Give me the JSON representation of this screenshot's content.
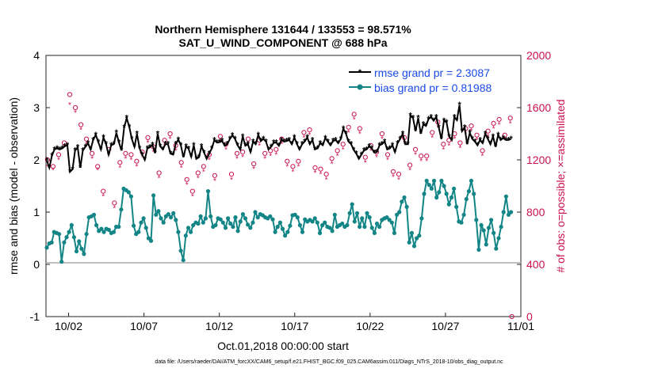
{
  "chart_data": {
    "type": "line",
    "title": "Northern Hemisphere 131644 / 133553 = 98.571%",
    "subtitle": "SAT_U_WIND_COMPONENT @ 688 hPa",
    "xlabel": "Oct.01,2018 00:00:00 start",
    "ylabel": "rmse and bias (model - observation)",
    "y2label": "# of obs: o=possible; ×=assimilated",
    "ylim": [
      -1,
      4
    ],
    "y2lim": [
      0,
      2000
    ],
    "xlim": [
      0.5,
      31.4
    ],
    "yticks": [
      "-1",
      "0",
      "1",
      "2",
      "3",
      "4"
    ],
    "y2ticks": [
      "0",
      "400",
      "800",
      "1200",
      "1600",
      "2000"
    ],
    "xtick_labels": [
      "10/02",
      "10/07",
      "10/12",
      "10/17",
      "10/22",
      "10/27",
      "11/01"
    ],
    "xtick_positions": [
      2,
      7,
      12,
      17,
      22,
      27,
      32
    ],
    "legend": [
      "rmse grand pr = 2.3087",
      "bias grand pr = 0.81988"
    ],
    "footnote": "data file: /Users/raeder/DAI/ATM_forcXX/CAM6_setup/f.e21.FHIST_BGC.f09_025.CAM6assim.011/Diags_NTrS_2018-10/obs_diag_output.nc",
    "colors": {
      "rmse": "#000000",
      "bias": "#138586",
      "obs": "#cc1150",
      "zero_line": "#aaaaaa"
    },
    "series": [
      {
        "name": "rmse",
        "values": [
          1.99,
          1.85,
          2.08,
          2.2,
          2.22,
          2.2,
          2.22,
          2.26,
          2.28,
          1.77,
          1.82,
          2.18,
          2.24,
          1.85,
          2.18,
          2.25,
          2.32,
          2.2,
          2.38,
          2.48,
          2.34,
          2.2,
          2.43,
          2.3,
          2.1,
          2.28,
          2.3,
          2.52,
          2.33,
          2.18,
          2.62,
          2.8,
          2.63,
          2.4,
          2.25,
          2.5,
          2.22,
          2.1,
          2.0,
          2.22,
          2.24,
          2.29,
          2.13,
          2.5,
          2.26,
          2.2,
          2.3,
          2.3,
          2.12,
          2.1,
          2.3,
          2.39,
          2.28,
          2.05,
          2.26,
          2.21,
          2.06,
          2.28,
          2.02,
          2.05,
          2.26,
          2.14,
          2.02,
          2.12,
          2.22,
          2.38,
          2.33,
          2.34,
          2.36,
          2.27,
          2.3,
          2.4,
          2.47,
          2.4,
          2.28,
          2.2,
          2.45,
          2.27,
          2.3,
          2.15,
          2.35,
          2.3,
          2.48,
          2.36,
          2.4,
          2.35,
          2.2,
          2.25,
          2.33,
          2.33,
          2.27,
          2.38,
          2.35,
          2.36,
          2.38,
          2.3,
          2.43,
          2.3,
          2.2,
          2.3,
          2.35,
          2.43,
          2.3,
          2.38,
          2.2,
          2.22,
          2.32,
          2.28,
          2.42,
          2.35,
          2.28,
          2.36,
          2.38,
          2.32,
          2.4,
          2.6,
          2.5,
          2.35,
          2.3,
          2.19,
          2.12,
          2.02,
          2.1,
          2.18,
          2.2,
          2.26,
          2.22,
          2.14,
          2.15,
          2.28,
          2.3,
          2.35,
          2.2,
          2.22,
          2.28,
          2.15,
          2.32,
          2.4,
          2.5,
          2.3,
          2.3,
          2.85,
          2.8,
          2.55,
          2.8,
          2.5,
          2.68,
          2.65,
          2.78,
          2.82,
          2.75,
          2.82,
          2.62,
          2.4,
          2.75,
          2.72,
          2.45,
          2.38,
          2.82,
          2.76,
          3.05,
          2.55,
          2.62,
          2.3,
          2.52,
          2.4,
          2.35,
          2.28,
          2.38,
          2.32,
          2.5,
          2.4,
          2.3,
          2.45,
          2.25,
          2.48,
          2.38,
          2.42,
          2.38,
          2.38,
          2.4
        ]
      },
      {
        "name": "bias",
        "values": [
          0.32,
          0.4,
          0.42,
          0.62,
          0.6,
          0.58,
          0.05,
          0.42,
          0.52,
          0.62,
          0.75,
          0.52,
          0.25,
          0.44,
          0.3,
          0.2,
          0.58,
          0.9,
          0.92,
          0.95,
          0.75,
          0.64,
          0.68,
          0.62,
          0.68,
          0.66,
          0.6,
          0.62,
          0.72,
          0.72,
          1.05,
          1.45,
          1.42,
          1.38,
          1.3,
          0.74,
          0.58,
          0.62,
          0.8,
          0.88,
          0.7,
          0.5,
          0.45,
          1.32,
          0.95,
          1.02,
          0.88,
          0.8,
          0.92,
          0.96,
          0.9,
          0.98,
          0.85,
          0.62,
          0.26,
          0.08,
          0.55,
          0.7,
          0.62,
          0.75,
          0.8,
          0.78,
          0.92,
          0.8,
          0.88,
          1.4,
          0.92,
          0.72,
          0.75,
          0.88,
          0.86,
          0.8,
          0.7,
          0.88,
          0.78,
          0.72,
          0.9,
          0.64,
          0.82,
          0.96,
          0.88,
          0.76,
          0.7,
          0.8,
          1.0,
          0.9,
          0.96,
          0.94,
          0.9,
          0.88,
          0.92,
          0.86,
          0.62,
          0.72,
          0.8,
          0.68,
          0.55,
          0.62,
          0.74,
          0.94,
          0.95,
          0.9,
          0.75,
          0.62,
          0.86,
          0.82,
          0.85,
          0.82,
          0.88,
          0.8,
          0.6,
          0.75,
          0.8,
          0.72,
          0.7,
          0.64,
          0.95,
          0.72,
          0.75,
          0.78,
          0.72,
          0.75,
          0.98,
          1.15,
          0.82,
          0.98,
          0.72,
          0.88,
          0.72,
          0.98,
          0.9,
          0.7,
          0.6,
          0.78,
          0.72,
          0.85,
          0.88,
          0.9,
          0.85,
          0.8,
          0.6,
          0.95,
          1.0,
          1.2,
          1.28,
          1.1,
          0.42,
          0.6,
          0.35,
          0.5,
          0.55,
          0.88,
          1.35,
          1.6,
          1.52,
          1.45,
          1.6,
          1.28,
          1.38,
          1.6,
          1.5,
          1.35,
          1.15,
          1.28,
          1.45,
          1.1,
          0.82,
          0.8,
          0.95,
          1.25,
          1.4,
          1.6,
          1.35,
          0.85,
          0.28,
          0.75,
          0.65,
          0.38,
          0.7,
          0.85,
          0.6,
          0.3,
          0.5,
          0.72,
          1.0,
          1.3,
          0.95,
          1.0
        ]
      },
      {
        "name": "obs_possible",
        "values": [
          1200,
          1150,
          1240,
          1330,
          1700,
          1600,
          1470,
          1360,
          1250,
          1150,
          960,
          1280,
          870,
          1180,
          1250,
          1240,
          1190,
          1260,
          1370,
          1300,
          1100,
          1350,
          1400,
          1310,
          1180,
          1050,
          960,
          1100,
          1150,
          1240,
          1080,
          1380,
          1320,
          1090,
          1250,
          1260,
          1360,
          1170,
          1350,
          1250,
          1270,
          1280,
          1360,
          1190,
          1150,
          1190,
          1410,
          1430,
          1140,
          1130,
          1090,
          1210,
          1270,
          1320,
          1450,
          1550,
          1440,
          1220,
          1310,
          1260,
          1400,
          1240,
          1110,
          1090,
          1370,
          1160,
          1280,
          1230,
          1230,
          1410,
          1490,
          1320,
          1350,
          1400,
          1330,
          1440,
          1460,
          1390,
          1270,
          1420,
          1480,
          1510,
          1390,
          1520
        ]
      },
      {
        "name": "obs_assimilated",
        "values": [
          1150,
          1120,
          1200,
          1300,
          1620,
          1560,
          1430,
          1320,
          1210,
          1120,
          920,
          1240,
          830,
          1140,
          1210,
          1200,
          1150,
          1220,
          1330,
          1260,
          1060,
          1310,
          1360,
          1270,
          1140,
          1010,
          920,
          1060,
          1110,
          1200,
          1040,
          1340,
          1280,
          1050,
          1210,
          1220,
          1320,
          1130,
          1310,
          1210,
          1230,
          1240,
          1320,
          1150,
          1110,
          1150,
          1370,
          1390,
          1100,
          1090,
          1050,
          1170,
          1230,
          1280,
          1410,
          1510,
          1400,
          1180,
          1270,
          1220,
          1360,
          1200,
          1070,
          1050,
          1330,
          1120,
          1240,
          1190,
          1190,
          1370,
          1450,
          1280,
          1310,
          1360,
          1290,
          1400,
          1420,
          1350,
          1230,
          1380,
          1440,
          1470,
          1350,
          1480
        ]
      },
      {
        "name": "final_obs_marker",
        "x": [
          31.4
        ],
        "values": [
          0
        ]
      }
    ]
  }
}
